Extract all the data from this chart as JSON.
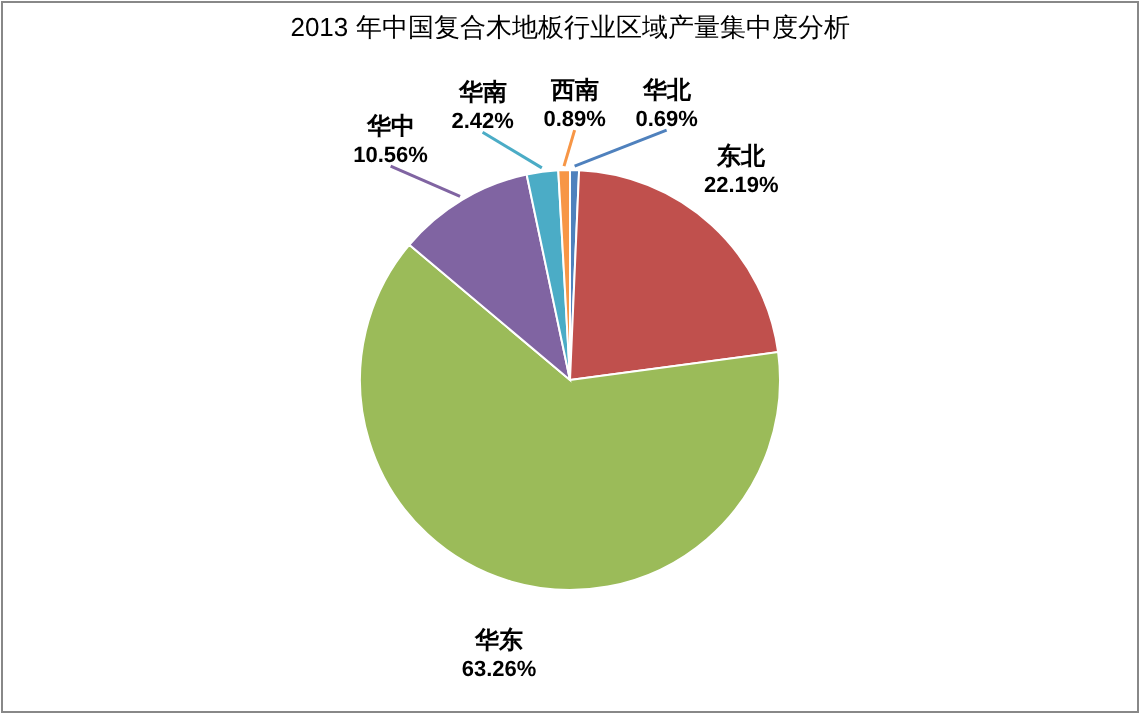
{
  "chart_data": {
    "type": "pie",
    "title": "2013 年中国复合木地板行业区域产量集中度分析",
    "categories": [
      "华北",
      "东北",
      "华东",
      "华中",
      "华南",
      "西南"
    ],
    "values": [
      0.69,
      22.19,
      63.26,
      10.56,
      2.42,
      0.89
    ],
    "colors": [
      "#4f81bd",
      "#c0504d",
      "#9bbb59",
      "#8064a2",
      "#4bacc6",
      "#f79646"
    ],
    "value_labels": [
      "0.69%",
      "22.19%",
      "63.26%",
      "10.56%",
      "2.42%",
      "0.89%"
    ]
  }
}
